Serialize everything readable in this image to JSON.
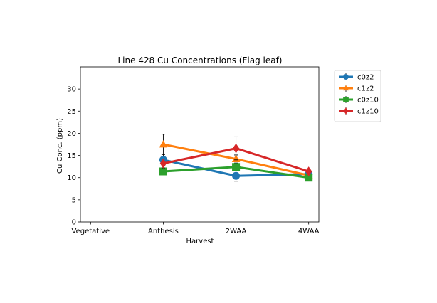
{
  "chart_data": {
    "type": "line",
    "title": "Line 428 Cu Concentrations (Flag leaf)",
    "xlabel": "Harvest",
    "ylabel": "Cu Conc. (ppm)",
    "categories": [
      "Vegetative",
      "Anthesis",
      "2WAA",
      "4WAA"
    ],
    "ylim": [
      0,
      35
    ],
    "yticks": [
      0,
      5,
      10,
      15,
      20,
      25,
      30
    ],
    "grid": false,
    "legend_position": "outside-upper-right",
    "series": [
      {
        "name": "c0z2",
        "color": "#1f77b4",
        "marker": "circle",
        "values": [
          null,
          14.0,
          10.4,
          10.8
        ],
        "errors": [
          null,
          1.3,
          1.2,
          0.4
        ]
      },
      {
        "name": "c1z2",
        "color": "#ff7f0e",
        "marker": "triangle",
        "values": [
          null,
          17.5,
          14.2,
          10.5
        ],
        "errors": [
          null,
          2.3,
          0.9,
          0.5
        ]
      },
      {
        "name": "c0z10",
        "color": "#2ca02c",
        "marker": "square",
        "values": [
          null,
          11.4,
          12.4,
          10.0
        ],
        "errors": [
          null,
          0.6,
          0.7,
          0.3
        ]
      },
      {
        "name": "c1z10",
        "color": "#d62728",
        "marker": "diamond",
        "values": [
          null,
          13.2,
          16.6,
          11.4
        ],
        "errors": [
          null,
          1.0,
          2.6,
          0.5
        ]
      }
    ]
  }
}
